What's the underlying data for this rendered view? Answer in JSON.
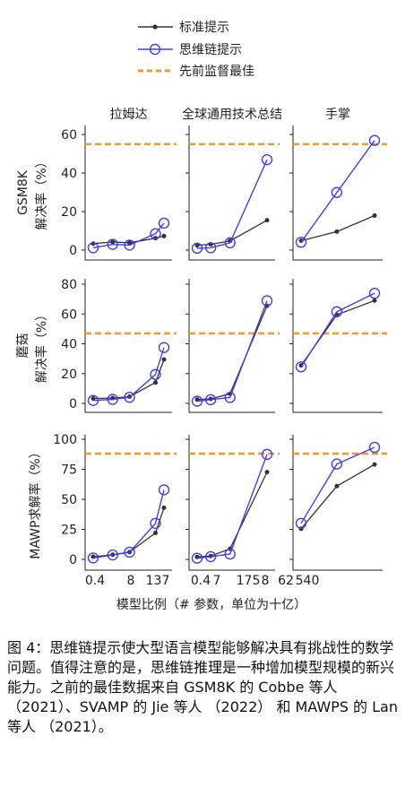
{
  "chart_data": {
    "type": "line",
    "legend": {
      "placement": "top-center",
      "entries": [
        {
          "key": "standard",
          "label": "标准提示",
          "color": "#333333",
          "marker": "small-filled-dot"
        },
        {
          "key": "cot",
          "label": "思维链提示",
          "color": "#4040e8",
          "marker": "hollow-circle"
        },
        {
          "key": "sota",
          "label": "先前监督最佳",
          "color": "#f39a2b",
          "style": "dashed"
        }
      ]
    },
    "column_titles": [
      "拉姆达",
      "全球通用技术总结",
      "手掌"
    ],
    "row_labels": [
      {
        "dataset": "GSM8K",
        "metric": "解决率（%）"
      },
      {
        "dataset": "蘑菇",
        "metric": "解决率（%）"
      },
      {
        "dataset": "",
        "metric": "MAWP求解率（%）"
      }
    ],
    "x_label": "模型比例（# 参数，单位为十亿）",
    "x_tick_labels": [
      [
        "0.4",
        "8",
        "137"
      ],
      [
        "0.4",
        "7",
        "175"
      ],
      [
        "8",
        "62",
        "540"
      ]
    ],
    "y_axes": [
      {
        "ticks": [
          0,
          20,
          40,
          60
        ],
        "ylim": [
          -2,
          65
        ]
      },
      {
        "ticks": [
          0,
          20,
          40,
          60,
          80
        ],
        "ylim": [
          -2,
          82
        ]
      },
      {
        "ticks": [
          0,
          25,
          50,
          75,
          100
        ],
        "ylim": [
          -3,
          103
        ]
      }
    ],
    "grid": false,
    "panels": [
      {
        "row": 0,
        "col": 0,
        "x": [
          0.4,
          2,
          8,
          68,
          137
        ],
        "standard": [
          3.4,
          4.2,
          3.8,
          6.2,
          7.3
        ],
        "cot": [
          1.2,
          3.0,
          2.6,
          8.5,
          14.0
        ],
        "sota": 55
      },
      {
        "row": 0,
        "col": 1,
        "x": [
          0.4,
          1.3,
          7,
          175
        ],
        "standard": [
          2.5,
          3.0,
          4.8,
          15.5
        ],
        "cot": [
          1.0,
          1.2,
          3.8,
          46.9
        ],
        "sota": 55
      },
      {
        "row": 0,
        "col": 2,
        "x": [
          8,
          62,
          540
        ],
        "standard": [
          4.9,
          9.6,
          17.9
        ],
        "cot": [
          4.1,
          29.9,
          56.9
        ],
        "sota": 55
      },
      {
        "row": 1,
        "col": 0,
        "x": [
          0.4,
          2,
          8,
          68,
          137
        ],
        "standard": [
          3.3,
          3.6,
          4.5,
          14.0,
          29.5
        ],
        "cot": [
          2.0,
          2.7,
          4.1,
          19.4,
          37.5
        ],
        "sota": 47
      },
      {
        "row": 1,
        "col": 1,
        "x": [
          0.4,
          1.3,
          7,
          175
        ],
        "standard": [
          2.6,
          3.0,
          6.5,
          65.5
        ],
        "cot": [
          1.5,
          2.5,
          4.0,
          68.9
        ],
        "sota": 47
      },
      {
        "row": 1,
        "col": 2,
        "x": [
          8,
          62,
          540
        ],
        "standard": [
          25.5,
          59.5,
          69.0
        ],
        "cot": [
          24.5,
          61.5,
          73.9
        ],
        "sota": 47
      },
      {
        "row": 2,
        "col": 0,
        "x": [
          0.4,
          2,
          8,
          68,
          137
        ],
        "standard": [
          2.2,
          3.9,
          6.1,
          22.0,
          43.0
        ],
        "cot": [
          1.2,
          3.7,
          6.0,
          30.0,
          57.9
        ],
        "sota": 88
      },
      {
        "row": 2,
        "col": 1,
        "x": [
          0.4,
          1.3,
          7,
          175
        ],
        "standard": [
          2.0,
          2.8,
          8.8,
          72.7
        ],
        "cot": [
          1.0,
          2.3,
          4.5,
          87.4
        ],
        "sota": 88
      },
      {
        "row": 2,
        "col": 2,
        "x": [
          8,
          62,
          540
        ],
        "standard": [
          25.5,
          61.0,
          79.0
        ],
        "cot": [
          30.0,
          79.4,
          93.3
        ],
        "sota": 88
      }
    ]
  },
  "caption": "图 4：思维链提示使大型语言模型能够解决具有挑战性的数学问题。值得注意的是，思维链推理是一种增加模型规模的新兴能力。之前的最佳数据来自 GSM8K 的 Cobbe 等人 （2021）、SVAMP 的 Jie 等人 （2022） 和 MAWPS 的 Lan 等人 （2021）。"
}
